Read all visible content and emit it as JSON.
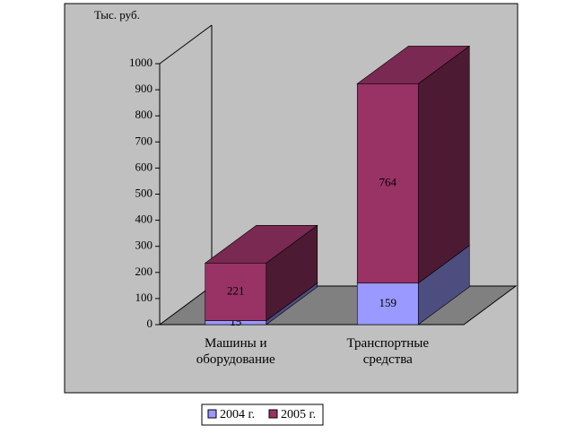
{
  "chart_data": {
    "type": "bar3d-stacked",
    "y_axis_label": "Тыс. руб.",
    "categories": [
      "Машины и оборудование",
      "Транспортные средства"
    ],
    "series": [
      {
        "name": "2004 г.",
        "color": "#9999ff",
        "values": [
          15,
          159
        ]
      },
      {
        "name": "2005 г.",
        "color": "#993366",
        "values": [
          221,
          764
        ]
      }
    ],
    "ylim": [
      0,
      1000
    ],
    "yticks": [
      0,
      100,
      200,
      300,
      400,
      500,
      600,
      700,
      800,
      900,
      1000
    ]
  }
}
